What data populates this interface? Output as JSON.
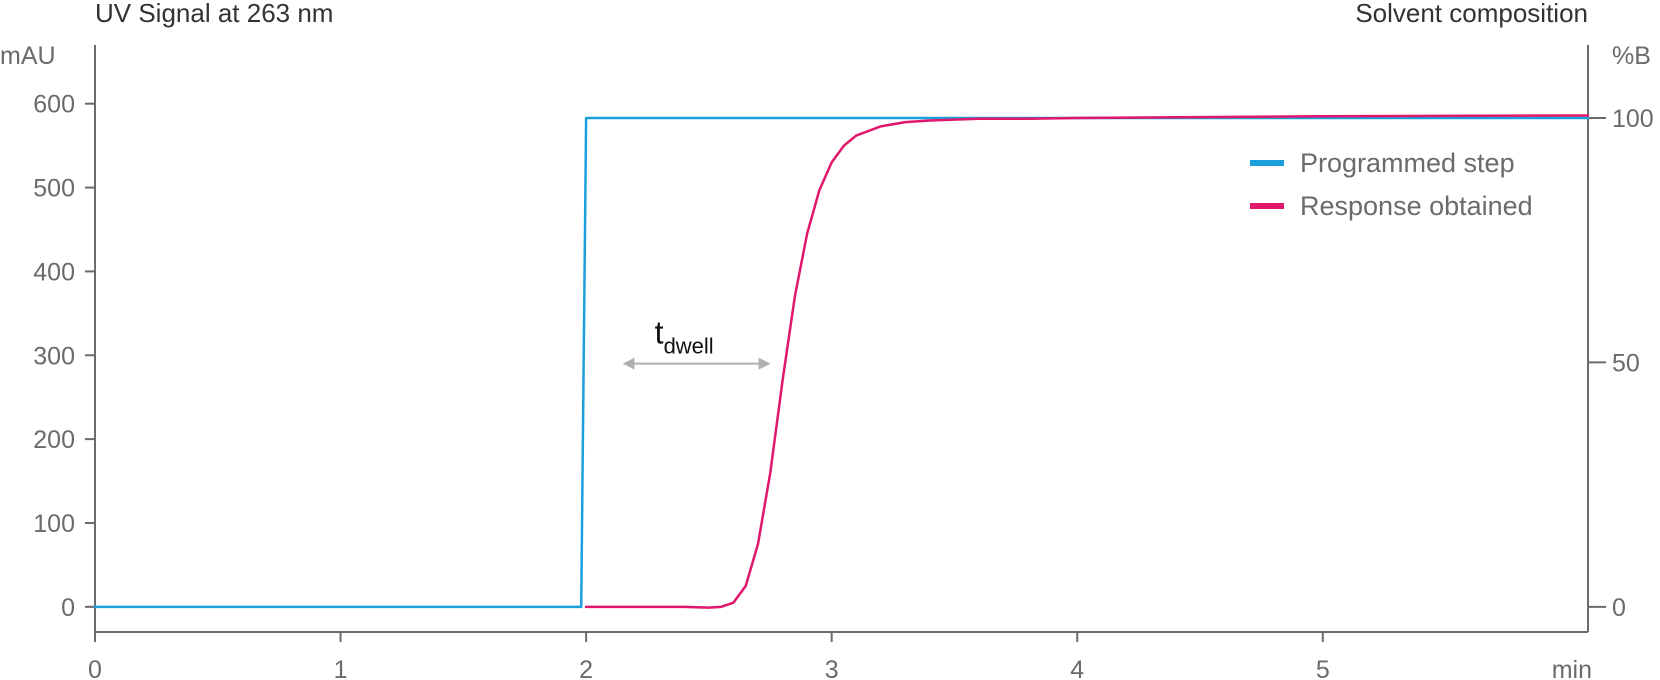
{
  "chart_data": {
    "type": "line",
    "title_left": "UV Signal at 263 nm",
    "title_right": "Solvent composition",
    "y_unit": "mAU",
    "y2_unit": "%B",
    "x_unit": "min",
    "xlim": [
      0,
      6.08
    ],
    "ylim": [
      -30,
      670
    ],
    "y2lim": [
      0,
      100
    ],
    "x_ticks": [
      "0",
      "1",
      "2",
      "3",
      "4",
      "5"
    ],
    "y_ticks": [
      "0",
      "100",
      "200",
      "300",
      "400",
      "500",
      "600"
    ],
    "y2_ticks": [
      "0",
      "50",
      "100"
    ],
    "grid": false,
    "legend_position": "top-right",
    "series": [
      {
        "name": "Programmed step",
        "color": "#1ba0dc",
        "x": [
          0,
          0.1,
          0.5,
          1.0,
          1.5,
          1.98,
          2.0,
          2.01,
          6.08
        ],
        "y": [
          0,
          0,
          0,
          0,
          0,
          0,
          583,
          583,
          583
        ]
      },
      {
        "name": "Response obtained",
        "color": "#e0176c",
        "x": [
          2.0,
          2.2,
          2.4,
          2.5,
          2.55,
          2.6,
          2.65,
          2.7,
          2.75,
          2.8,
          2.85,
          2.9,
          2.95,
          3.0,
          3.05,
          3.1,
          3.2,
          3.3,
          3.4,
          3.5,
          3.6,
          3.8,
          4.0,
          5.0,
          6.08
        ],
        "y": [
          0,
          0,
          0,
          -1,
          0,
          5,
          25,
          75,
          160,
          270,
          370,
          445,
          497,
          530,
          550,
          562,
          573,
          578,
          580,
          581,
          582,
          582,
          583,
          585,
          586
        ]
      }
    ],
    "annotation": {
      "label_main": "t",
      "label_sub": "dwell",
      "x_start": 2.1,
      "x_end": 2.8,
      "y": 290
    }
  }
}
